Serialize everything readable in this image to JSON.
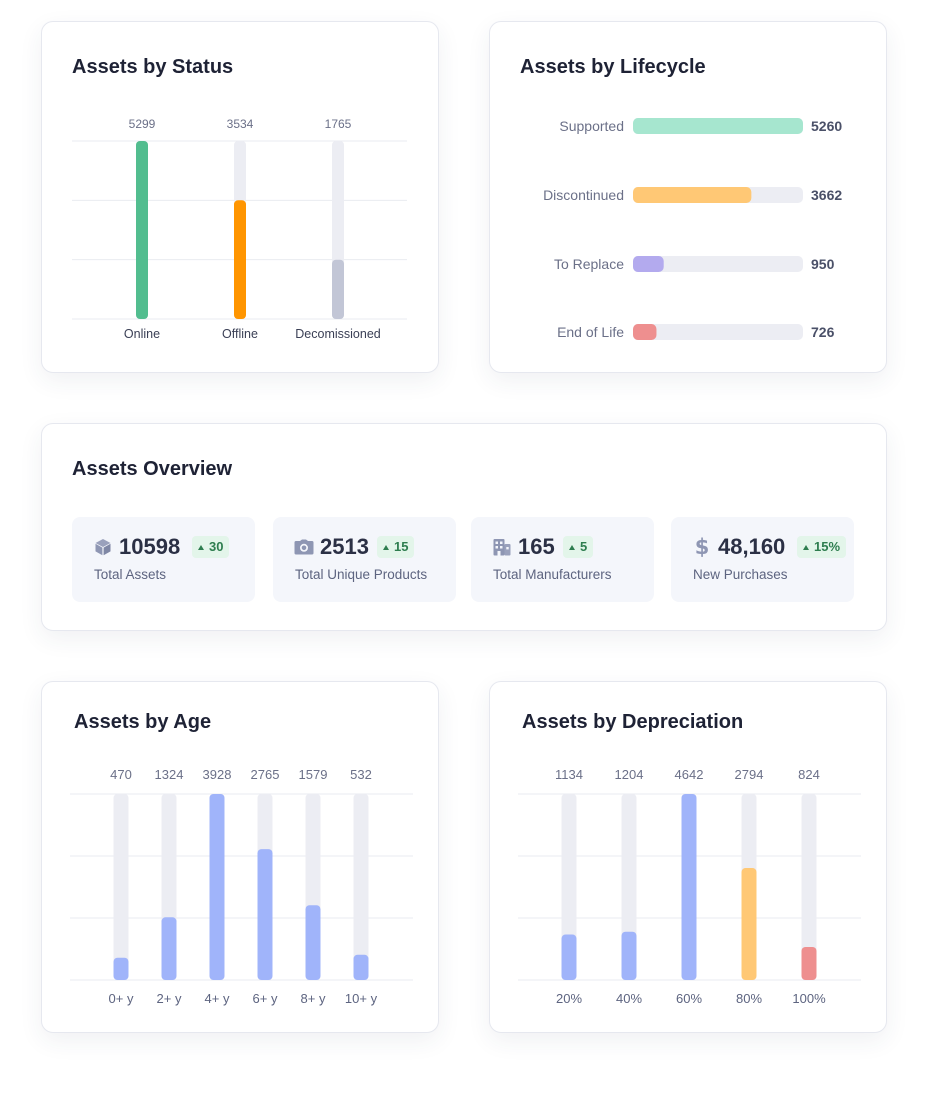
{
  "status": {
    "title": "Assets by Status",
    "chart_data": {
      "type": "bar",
      "categories": [
        "Online",
        "Offline",
        "Decomissioned"
      ],
      "values": [
        5299,
        3534,
        1765
      ],
      "ylim": [
        0,
        5299
      ],
      "grid": true,
      "colors": [
        "#52bd8f",
        "#ff9500",
        "#c2c6d6"
      ]
    }
  },
  "lifecycle": {
    "title": "Assets by Lifecycle",
    "chart_data": {
      "type": "bar",
      "orientation": "horizontal",
      "categories": [
        "Supported",
        "Discontinued",
        "To Replace",
        "End of Life"
      ],
      "values": [
        5260,
        3662,
        950,
        726
      ],
      "xlim": [
        0,
        5260
      ],
      "colors": [
        "#a6e6cf",
        "#ffc875",
        "#b3aaee",
        "#ee8f8f"
      ]
    }
  },
  "overview": {
    "title": "Assets Overview",
    "kpis": [
      {
        "icon": "cube-icon",
        "value": "10598",
        "delta": "30",
        "label": "Total Assets"
      },
      {
        "icon": "camera-icon",
        "value": "2513",
        "delta": "15",
        "label": "Total Unique Products"
      },
      {
        "icon": "building-icon",
        "value": "165",
        "delta": "5",
        "label": "Total Manufacturers"
      },
      {
        "icon": "dollar-icon",
        "value": "48,160",
        "delta": "15%",
        "label": "New Purchases"
      }
    ],
    "icon_color": "#8e96b3",
    "badge_color": "#e3f5ea"
  },
  "age": {
    "title": "Assets by Age",
    "chart_data": {
      "type": "bar",
      "categories": [
        "0+ y",
        "2+ y",
        "4+ y",
        "6+ y",
        "8+ y",
        "10+ y"
      ],
      "values": [
        470,
        1324,
        3928,
        2765,
        1579,
        532
      ],
      "ylim": [
        0,
        3928
      ],
      "grid": true,
      "colors": [
        "#a0b4fa",
        "#a0b4fa",
        "#a0b4fa",
        "#a0b4fa",
        "#a0b4fa",
        "#a0b4fa"
      ]
    }
  },
  "depreciation": {
    "title": "Assets by Depreciation",
    "chart_data": {
      "type": "bar",
      "categories": [
        "20%",
        "40%",
        "60%",
        "80%",
        "100%"
      ],
      "values": [
        1134,
        1204,
        4642,
        2794,
        824
      ],
      "ylim": [
        0,
        4642
      ],
      "grid": true,
      "colors": [
        "#a0b4fa",
        "#a0b4fa",
        "#a0b4fa",
        "#ffc875",
        "#ee8f8f"
      ]
    }
  }
}
